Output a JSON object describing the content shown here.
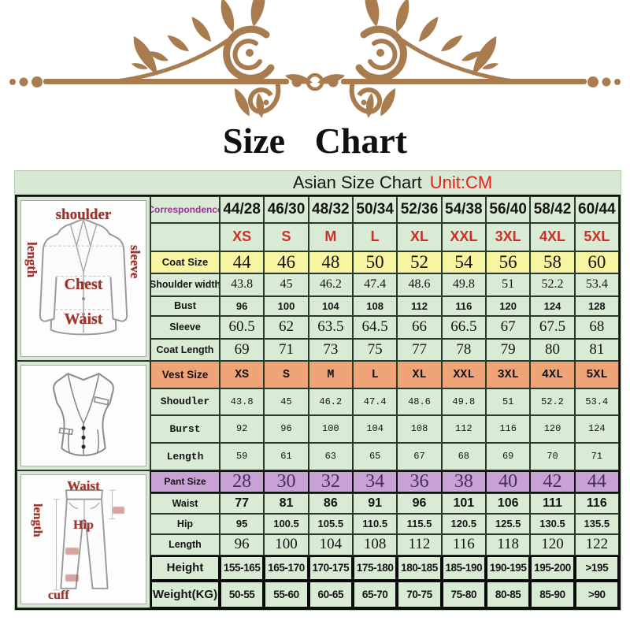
{
  "title": "Size Chart",
  "subtitle": {
    "label": "Asian Size Chart",
    "unit": "Unit:CM"
  },
  "colors": {
    "ornament_brown": "#a87c4f",
    "panel_green": "#d7e9d3",
    "cell_green": "#d9ebd5",
    "coat_row_yellow": "#f8f5a2",
    "vest_row_orange": "#efa477",
    "pant_row_purple": "#c8a2d4",
    "pant_number_purple": "#462d5e",
    "size_letter_red": "#cd2f26",
    "unit_red": "#ea1c16",
    "correspondence_purple": "#9b2f9b",
    "illustration_label_red": "#9b332b"
  },
  "illustrations": {
    "jacket": {
      "shoulder": "shoulder",
      "length": "length",
      "sleeve": "sleeve",
      "chest": "Chest",
      "waist": "Waist"
    },
    "pants": {
      "waist": "Waist",
      "length": "length",
      "hip": "Hip",
      "cuff": "cuff"
    }
  },
  "table": {
    "rows": [
      {
        "id": "correspondence",
        "label": "Correspondence",
        "label_style": "corr",
        "value_style": "corr",
        "values": [
          "44/28",
          "46/30",
          "48/32",
          "50/34",
          "52/36",
          "54/38",
          "56/40",
          "58/42",
          "60/44"
        ]
      },
      {
        "id": "size-letters",
        "label": "",
        "label_style": "",
        "value_style": "letters",
        "values": [
          "XS",
          "S",
          "M",
          "L",
          "XL",
          "XXL",
          "3XL",
          "4XL",
          "5XL"
        ]
      },
      {
        "id": "coat-size",
        "label": "Coat Size",
        "label_style": "coat-size",
        "value_style": "coat-size",
        "values": [
          "44",
          "46",
          "48",
          "50",
          "52",
          "54",
          "56",
          "58",
          "60"
        ]
      },
      {
        "id": "shoulder-width",
        "label": "Shoulder width",
        "label_style": "",
        "value_style": "serif-sm",
        "values": [
          "43.8",
          "45",
          "46.2",
          "47.4",
          "48.6",
          "49.8",
          "51",
          "52.2",
          "53.4"
        ]
      },
      {
        "id": "bust",
        "label": "Bust",
        "label_style": "",
        "value_style": "bold-sm",
        "values": [
          "96",
          "100",
          "104",
          "108",
          "112",
          "116",
          "120",
          "124",
          "128"
        ]
      },
      {
        "id": "sleeve",
        "label": "Sleeve",
        "label_style": "",
        "value_style": "serif-md",
        "values": [
          "60.5",
          "62",
          "63.5",
          "64.5",
          "66",
          "66.5",
          "67",
          "67.5",
          "68"
        ]
      },
      {
        "id": "coat-length",
        "label": "Coat Length",
        "label_style": "",
        "value_style": "serif-md",
        "values": [
          "69",
          "71",
          "73",
          "75",
          "77",
          "78",
          "79",
          "80",
          "81"
        ]
      },
      {
        "id": "vest-size",
        "label": "Vest Size",
        "label_style": "vest-size",
        "value_style": "vest-size",
        "values": [
          "XS",
          "S",
          "M",
          "L",
          "XL",
          "XXL",
          "3XL",
          "4XL",
          "5XL"
        ]
      },
      {
        "id": "vest-shoulder",
        "label": "Shoudler",
        "label_style": "mono",
        "value_style": "mono",
        "values": [
          "43.8",
          "45",
          "46.2",
          "47.4",
          "48.6",
          "49.8",
          "51",
          "52.2",
          "53.4"
        ]
      },
      {
        "id": "vest-bust",
        "label": "Burst",
        "label_style": "mono",
        "value_style": "mono",
        "values": [
          "92",
          "96",
          "100",
          "104",
          "108",
          "112",
          "116",
          "120",
          "124"
        ]
      },
      {
        "id": "vest-length",
        "label": "Length",
        "label_style": "mono",
        "value_style": "mono",
        "values": [
          "59",
          "61",
          "63",
          "65",
          "67",
          "68",
          "69",
          "70",
          "71"
        ]
      },
      {
        "id": "pant-size",
        "label": "Pant Size",
        "label_style": "pant-size",
        "value_style": "pant-size",
        "values": [
          "28",
          "30",
          "32",
          "34",
          "36",
          "38",
          "40",
          "42",
          "44"
        ]
      },
      {
        "id": "waist",
        "label": "Waist",
        "label_style": "",
        "value_style": "bold-md",
        "values": [
          "77",
          "81",
          "86",
          "91",
          "96",
          "101",
          "106",
          "111",
          "116"
        ]
      },
      {
        "id": "hip",
        "label": "Hip",
        "label_style": "",
        "value_style": "bold-sm",
        "values": [
          "95",
          "100.5",
          "105.5",
          "110.5",
          "115.5",
          "120.5",
          "125.5",
          "130.5",
          "135.5"
        ]
      },
      {
        "id": "pant-length",
        "label": "Length",
        "label_style": "",
        "value_style": "serif-md",
        "values": [
          "96",
          "100",
          "104",
          "108",
          "112",
          "116",
          "118",
          "120",
          "122"
        ]
      },
      {
        "id": "height",
        "label": "Height",
        "label_style": "",
        "value_style": "range",
        "values": [
          "155-165",
          "165-170",
          "170-175",
          "175-180",
          "180-185",
          "185-190",
          "190-195",
          "195-200",
          ">195"
        ]
      },
      {
        "id": "weight",
        "label": "Weight(KG)",
        "label_style": "",
        "value_style": "range",
        "values": [
          "50-55",
          "55-60",
          "60-65",
          "65-70",
          "70-75",
          "75-80",
          "80-85",
          "85-90",
          ">90"
        ]
      }
    ]
  }
}
